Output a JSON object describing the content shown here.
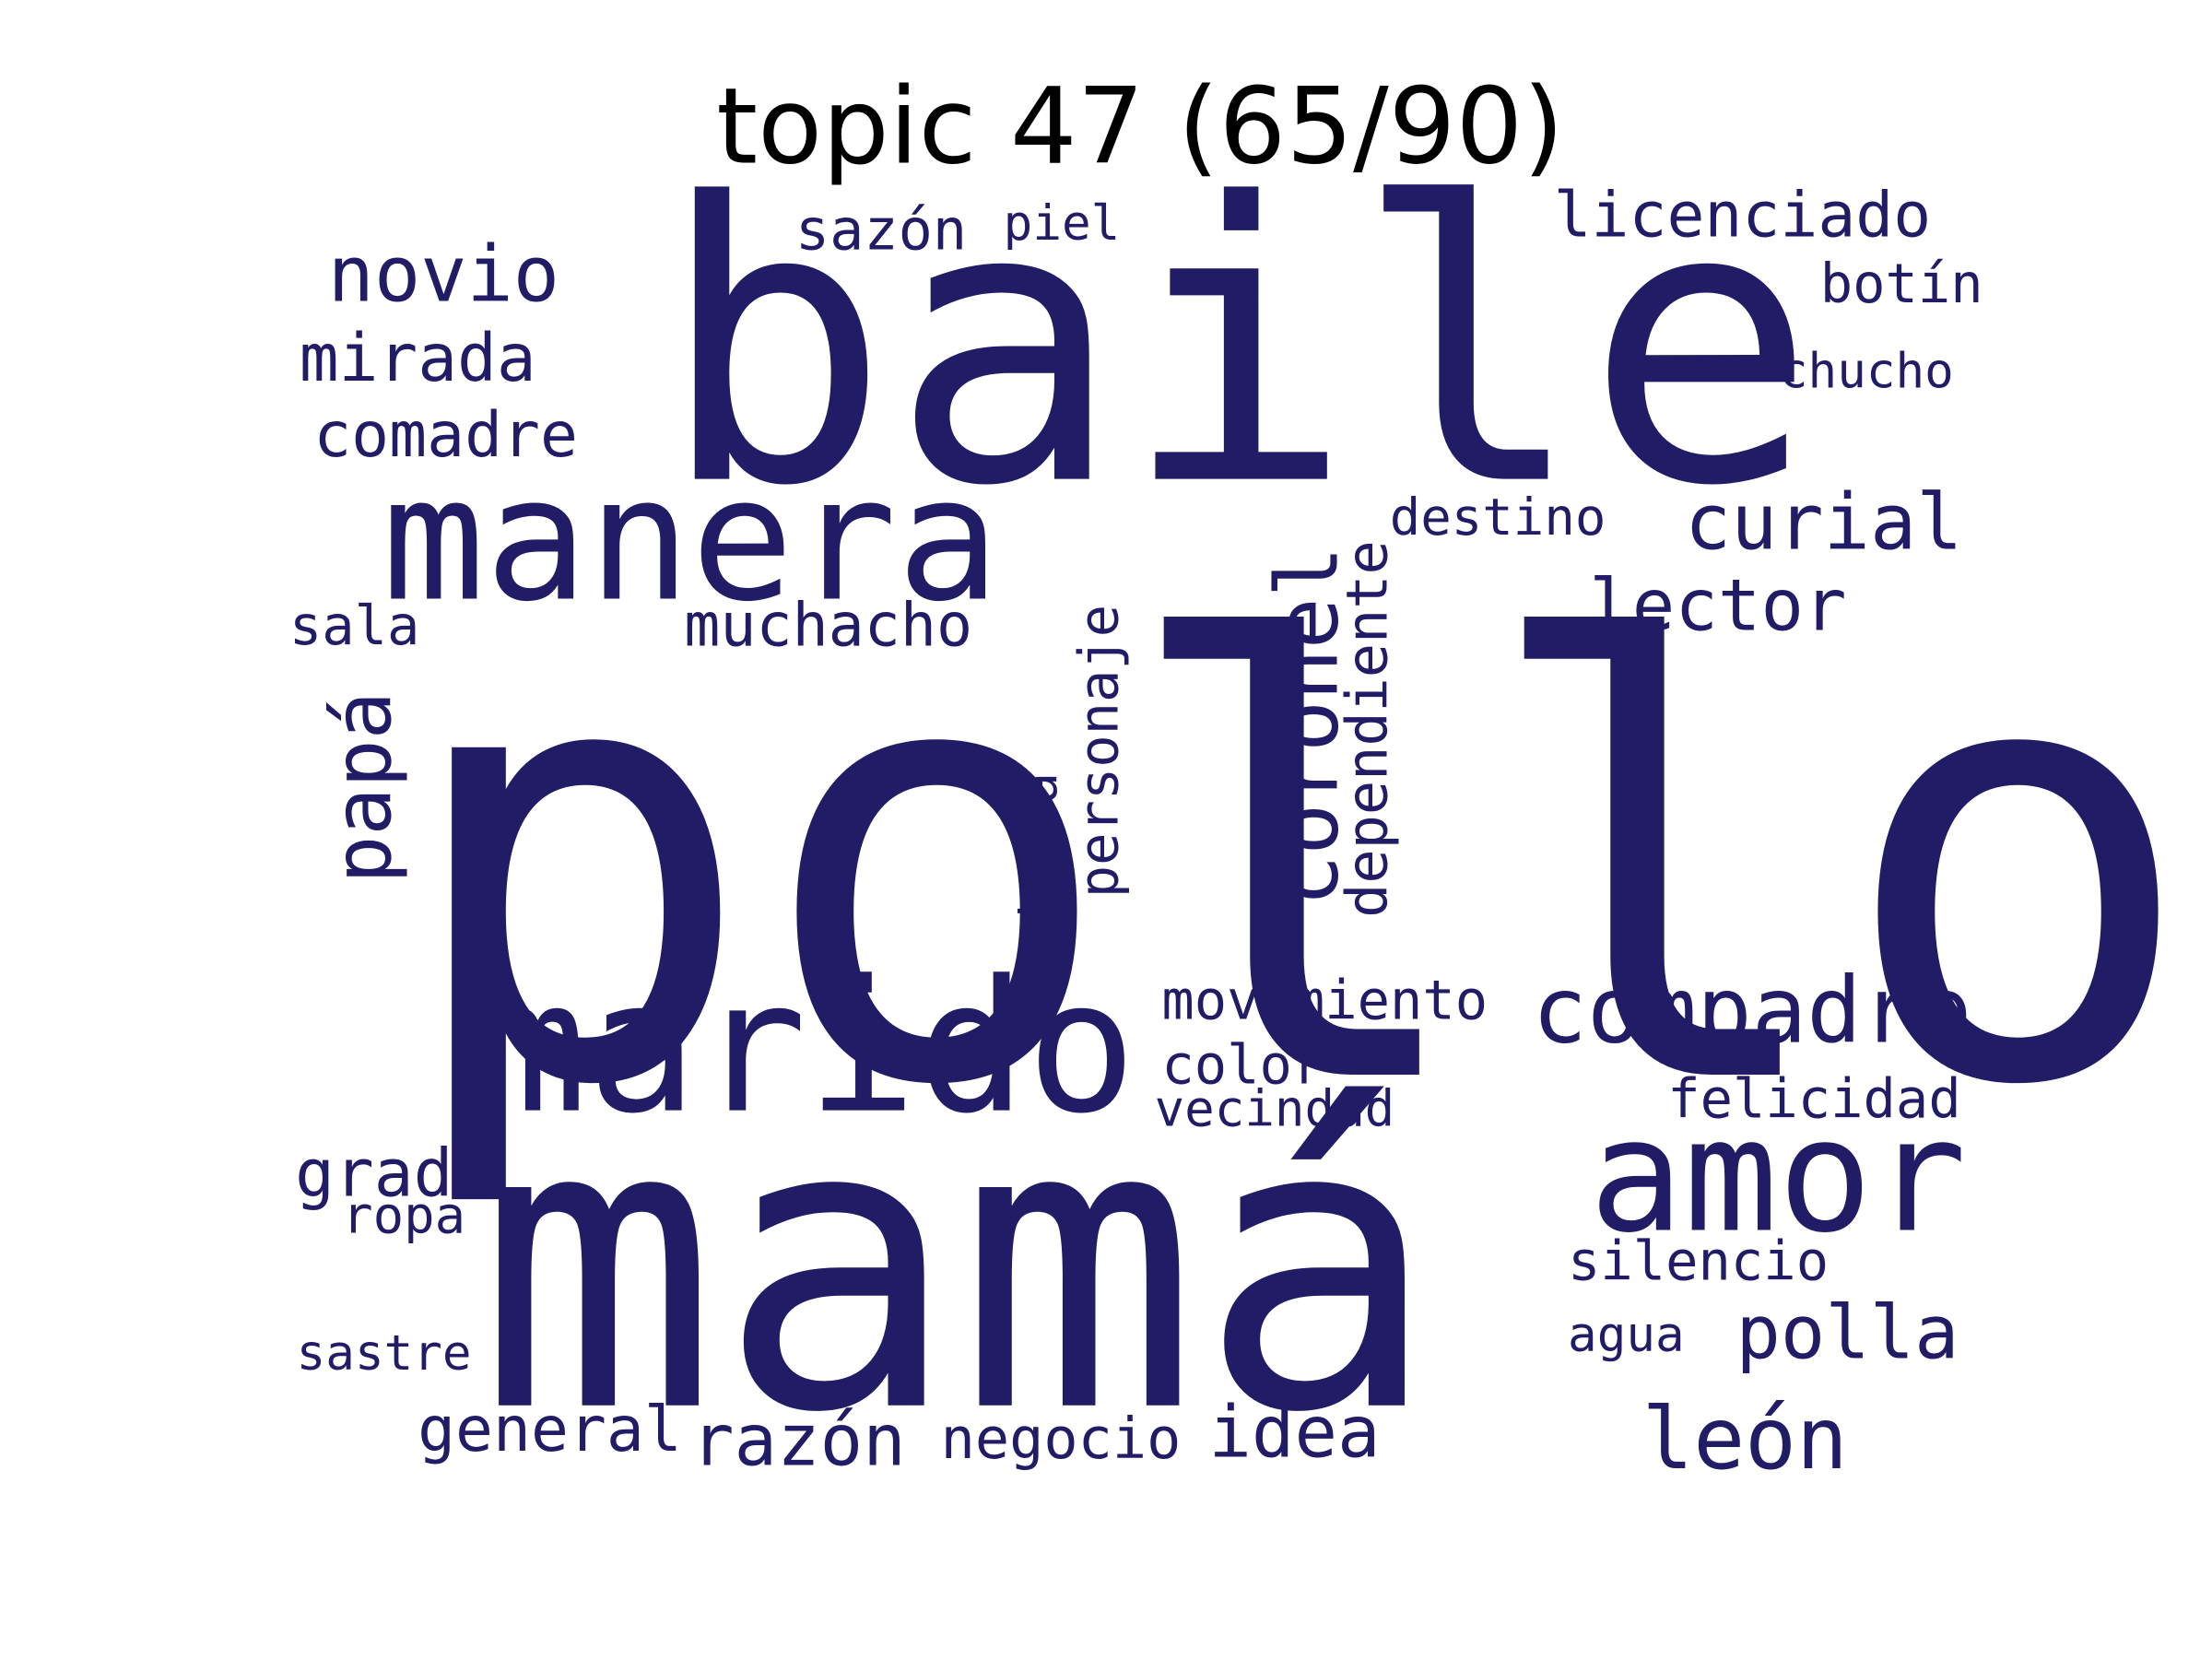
{
  "title": "topic 47 (65/90)",
  "word_color": "#221c66",
  "words": {
    "pollo": "pollo",
    "baile": "baile",
    "mama": "mamá",
    "manera": "manera",
    "marido": "marido",
    "amor": "amor",
    "compadre": "compadre",
    "coronel": "coronel",
    "novio": "novio",
    "mirada": "mirada",
    "comadre": "comadre",
    "sazon": "sazón",
    "piel": "piel",
    "licenciado": "licenciado",
    "botin": "botín",
    "chucho": "chucho",
    "destino": "destino",
    "dependiente": "dependiente",
    "curial": "curial",
    "lector": "lector",
    "sala": "sala",
    "muchacho": "muchacho",
    "papa": "papá",
    "personaje": "personaje",
    "visita": "visita",
    "movimiento": "movimiento",
    "color": "color",
    "vecindad": "vecindad",
    "felicidad": "felicidad",
    "grado": "grado",
    "ropa": "ropa",
    "silencio": "silencio",
    "agua": "agua",
    "polla": "polla",
    "sastre": "sastre",
    "general": "general",
    "razon": "razón",
    "negocio": "negocio",
    "idea": "idea",
    "leon": "león"
  }
}
